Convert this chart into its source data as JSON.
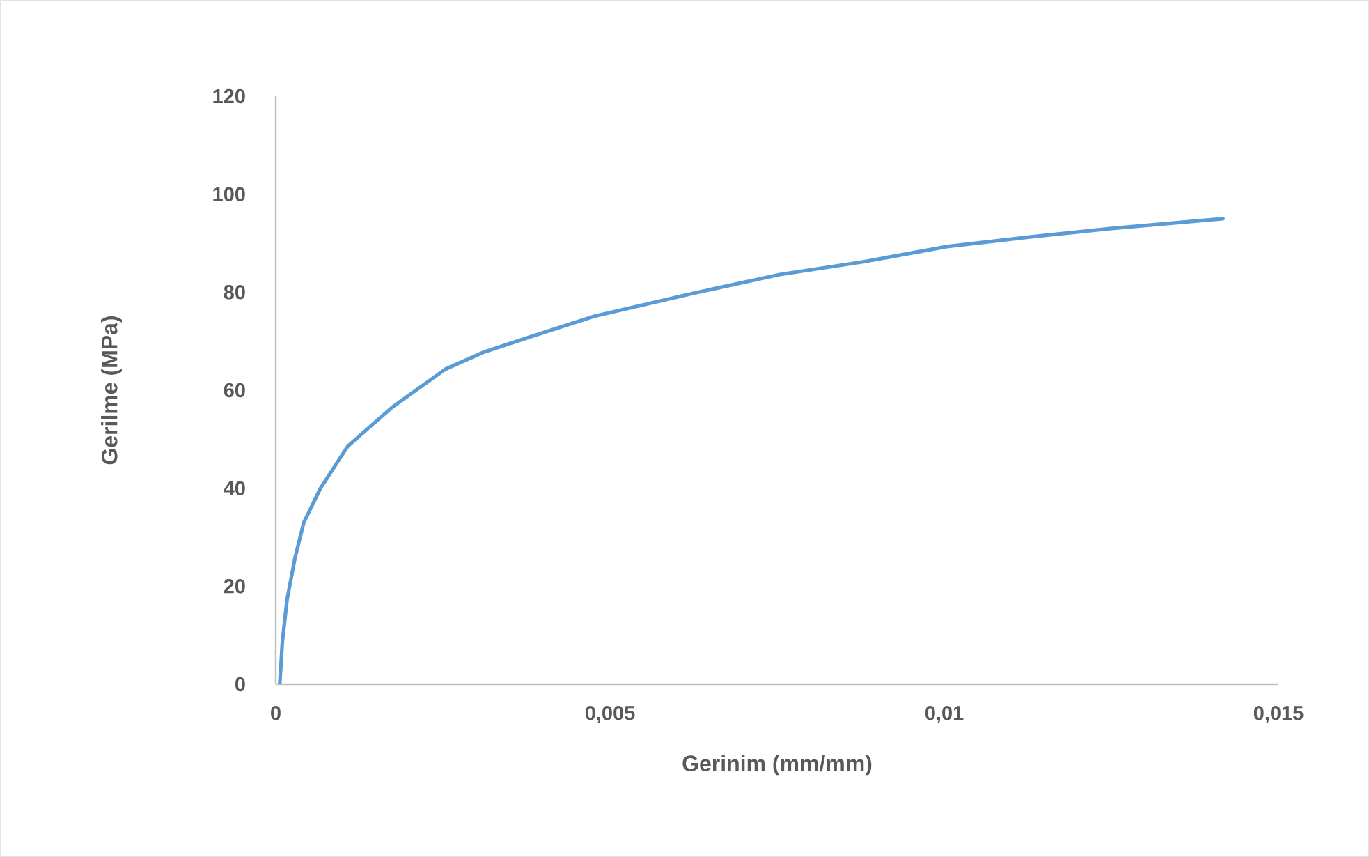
{
  "chart_data": {
    "type": "line",
    "xlabel": "Gerinim (mm/mm)",
    "ylabel": "Gerilme (MPa)",
    "x": [
      6e-05,
      0.0001,
      0.00017,
      0.00029,
      0.00042,
      0.00067,
      0.00108,
      0.00175,
      0.00254,
      0.0031,
      0.00379,
      0.00477,
      0.00629,
      0.00754,
      0.00879,
      0.01004,
      0.0113,
      0.0125,
      0.01417
    ],
    "series": [
      {
        "color": "#5b9bd5",
        "values": [
          0,
          8.8,
          17.3,
          25.9,
          33,
          40,
          48.6,
          56.6,
          64.3,
          67.7,
          70.8,
          75.1,
          79.9,
          83.6,
          86.2,
          89.3,
          91.3,
          93,
          95
        ]
      }
    ],
    "xlim": [
      0,
      0.015
    ],
    "ylim": [
      0,
      120
    ],
    "xticks": [
      0,
      {
        "value": 0.005,
        "label": "0,005"
      },
      {
        "value": 0.01,
        "label": "0,01"
      },
      {
        "value": 0.015,
        "label": "0,015"
      }
    ],
    "yticks": [
      0,
      20,
      40,
      60,
      80,
      100,
      120
    ],
    "grid": false,
    "legend": false,
    "marker": "none",
    "line_style": "solid"
  }
}
